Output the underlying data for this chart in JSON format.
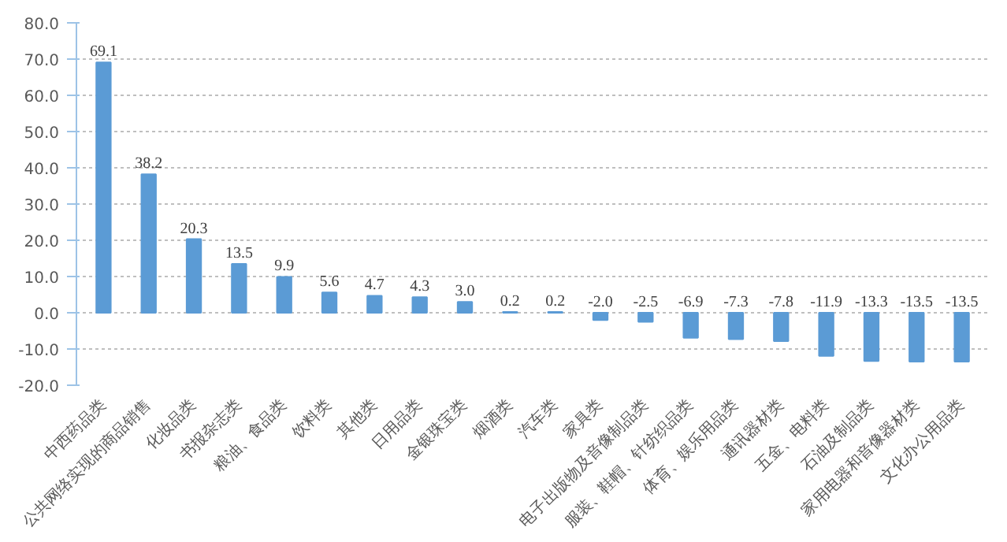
{
  "chart_data": {
    "type": "bar",
    "categories": [
      "中西药品类",
      "公共网络实现的商品销售",
      "化妆品类",
      "书报杂志类",
      "粮油、食品类",
      "饮料类",
      "其他类",
      "日用品类",
      "金银珠宝类",
      "烟酒类",
      "汽车类",
      "家具类",
      "电子出版物及音像制品类",
      "服装、鞋帽、针纺织品类",
      "体育、娱乐用品类",
      "通讯器材类",
      "五金、电料类",
      "石油及制品类",
      "家用电器和音像器材类",
      "文化办公用品类"
    ],
    "values": [
      69.1,
      38.2,
      20.3,
      13.5,
      9.9,
      5.6,
      4.7,
      4.3,
      3.0,
      0.2,
      0.2,
      -2.0,
      -2.5,
      -6.9,
      -7.3,
      -7.8,
      -11.9,
      -13.3,
      -13.5,
      -13.5
    ],
    "color": "#5b9bd5",
    "value_labels": [
      "69.1",
      "38.2",
      "20.3",
      "13.5",
      "9.9",
      "5.6",
      "4.7",
      "4.3",
      "3.0",
      "0.2",
      "0.2",
      "-2.0",
      "-2.5",
      "-6.9",
      "-7.3",
      "-7.8",
      "-11.9",
      "-13.3",
      "-13.5",
      "-13.5"
    ],
    "ylim": [
      -20,
      80
    ],
    "yticks": [
      {
        "value": -20,
        "label": "-20.0"
      },
      {
        "value": -10,
        "label": "-10.0"
      },
      {
        "value": 0,
        "label": "0.0"
      },
      {
        "value": 10,
        "label": "10.0"
      },
      {
        "value": 20,
        "label": "20.0"
      },
      {
        "value": 30,
        "label": "30.0"
      },
      {
        "value": 40,
        "label": "40.0"
      },
      {
        "value": 50,
        "label": "50.0"
      },
      {
        "value": 60,
        "label": "60.0"
      },
      {
        "value": 70,
        "label": "70.0"
      },
      {
        "value": 80,
        "label": "80.0"
      }
    ],
    "grid": "y"
  }
}
